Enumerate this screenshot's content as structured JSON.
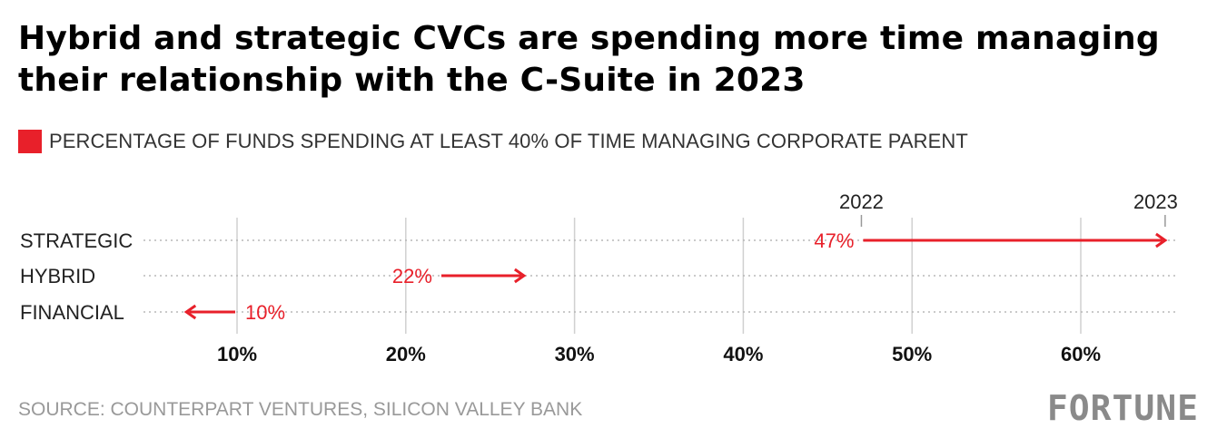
{
  "chart_data": {
    "type": "arrow-dot",
    "title": "Hybrid and strategic CVCs are spending more time managing their relationship with the C-Suite in 2023",
    "legend": "PERCENTAGE OF FUNDS SPENDING AT LEAST 40% OF TIME MANAGING CORPORATE PARENT",
    "categories": [
      "STRATEGIC",
      "HYBRID",
      "FINANCIAL"
    ],
    "series": [
      {
        "name": "2022",
        "values": [
          47,
          22,
          10
        ]
      },
      {
        "name": "2023",
        "values": [
          65,
          27,
          7
        ]
      }
    ],
    "value_labels": [
      "47%",
      "22%",
      "10%"
    ],
    "year_labels": {
      "start": "2022",
      "end": "2023"
    },
    "xlim": [
      4,
      66
    ],
    "xticks": [
      10,
      20,
      30,
      40,
      50,
      60
    ],
    "xtick_labels": [
      "10%",
      "20%",
      "30%",
      "40%",
      "50%",
      "60%"
    ],
    "grid": true,
    "accent_color": "#e8202a"
  },
  "footer": {
    "source": "SOURCE: COUNTERPART VENTURES, SILICON VALLEY BANK",
    "logo": "FORTUNE"
  }
}
